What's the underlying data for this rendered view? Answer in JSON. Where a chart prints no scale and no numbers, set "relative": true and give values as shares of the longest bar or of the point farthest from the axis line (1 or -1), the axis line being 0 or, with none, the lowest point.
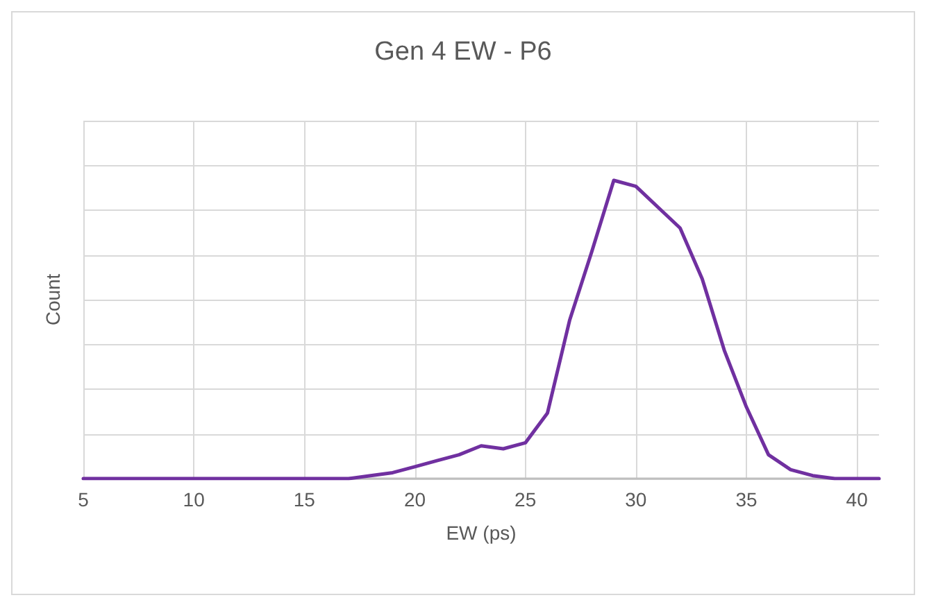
{
  "chart_data": {
    "type": "line",
    "title": "Gen 4 EW - P6",
    "xlabel": "EW (ps)",
    "ylabel": "Count",
    "relative": true,
    "xlim": [
      5,
      41
    ],
    "xticks": [
      5,
      10,
      15,
      20,
      25,
      30,
      35,
      40
    ],
    "grid": true,
    "marker": "none",
    "line_style": "solid",
    "x": [
      5,
      6,
      7,
      8,
      9,
      10,
      11,
      12,
      13,
      14,
      15,
      16,
      17,
      18,
      19,
      20,
      21,
      22,
      23,
      24,
      25,
      26,
      27,
      28,
      29,
      30,
      31,
      32,
      33,
      34,
      35,
      36,
      37,
      38,
      39,
      40,
      41
    ],
    "series": [
      {
        "color": "#7030a0",
        "values": [
          0,
          0,
          0,
          0,
          0,
          0,
          0,
          0,
          0,
          0,
          0,
          0,
          0,
          0.01,
          0.02,
          0.04,
          0.06,
          0.08,
          0.11,
          0.1,
          0.12,
          0.22,
          0.53,
          0.76,
          1,
          0.98,
          0.91,
          0.84,
          0.67,
          0.43,
          0.24,
          0.08,
          0.03,
          0.01,
          0,
          0,
          0
        ]
      }
    ]
  }
}
